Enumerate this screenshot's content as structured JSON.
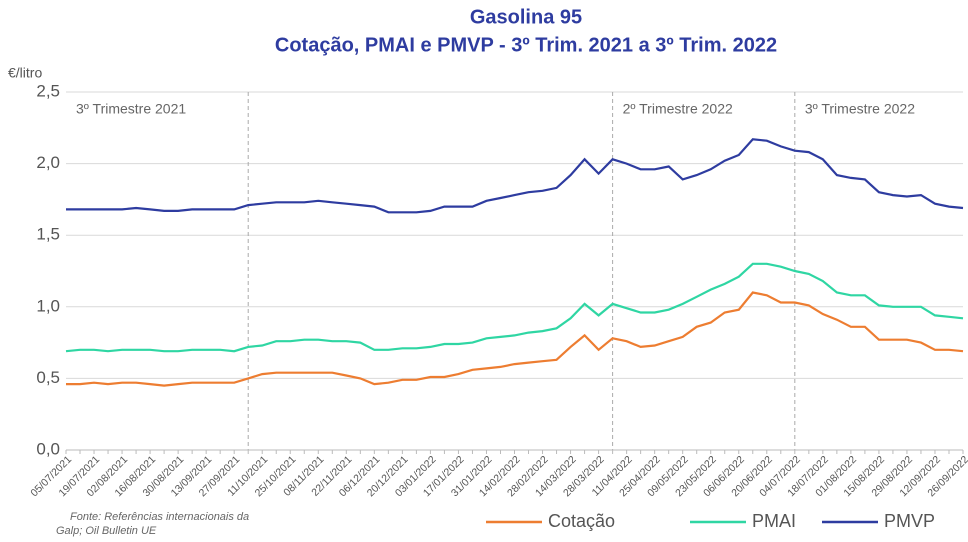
{
  "chart_data": {
    "type": "line",
    "title": "Gasolina 95",
    "subtitle": "Cotação, PMAI e PMVP - 3º Trim. 2021 a 3º Trim. 2022",
    "y_label": "€/litro",
    "source": [
      "Fonte: Referências internacionais da",
      "Galp; Oil Bulletin UE"
    ],
    "categories": [
      "05/07/2021",
      null,
      "19/07/2021",
      null,
      "02/08/2021",
      null,
      "16/08/2021",
      null,
      "30/08/2021",
      null,
      "13/09/2021",
      null,
      "27/09/2021",
      null,
      "11/10/2021",
      null,
      "25/10/2021",
      null,
      "08/11/2021",
      null,
      "22/11/2021",
      null,
      "06/12/2021",
      null,
      "20/12/2021",
      null,
      "03/01/2022",
      null,
      "17/01/2022",
      null,
      "31/01/2022",
      null,
      "14/02/2022",
      null,
      "28/02/2022",
      null,
      "14/03/2022",
      null,
      "28/03/2022",
      null,
      "11/04/2022",
      null,
      "25/04/2022",
      null,
      "09/05/2022",
      null,
      "23/05/2022",
      null,
      "06/06/2022",
      null,
      "20/06/2022",
      null,
      "04/07/2022",
      null,
      "18/07/2022",
      null,
      "01/08/2022",
      null,
      "15/08/2022",
      null,
      "29/08/2022",
      null,
      "12/09/2022",
      null,
      "26/09/2022"
    ],
    "series": [
      {
        "name": "Cotação",
        "color": "#ed7d31",
        "values": [
          0.46,
          0.46,
          0.47,
          0.46,
          0.47,
          0.47,
          0.46,
          0.45,
          0.46,
          0.47,
          0.47,
          0.47,
          0.47,
          0.5,
          0.53,
          0.54,
          0.54,
          0.54,
          0.54,
          0.54,
          0.52,
          0.5,
          0.46,
          0.47,
          0.49,
          0.49,
          0.51,
          0.51,
          0.53,
          0.56,
          0.57,
          0.58,
          0.6,
          0.61,
          0.62,
          0.63,
          0.72,
          0.8,
          0.7,
          0.78,
          0.76,
          0.72,
          0.73,
          0.76,
          0.79,
          0.86,
          0.89,
          0.96,
          0.98,
          1.1,
          1.08,
          1.03,
          1.03,
          1.01,
          0.95,
          0.91,
          0.86,
          0.86,
          0.77,
          0.77,
          0.77,
          0.75,
          0.7,
          0.7,
          0.69
        ]
      },
      {
        "name": "PMAI",
        "color": "#2fd6a3",
        "values": [
          0.69,
          0.7,
          0.7,
          0.69,
          0.7,
          0.7,
          0.7,
          0.69,
          0.69,
          0.7,
          0.7,
          0.7,
          0.69,
          0.72,
          0.73,
          0.76,
          0.76,
          0.77,
          0.77,
          0.76,
          0.76,
          0.75,
          0.7,
          0.7,
          0.71,
          0.71,
          0.72,
          0.74,
          0.74,
          0.75,
          0.78,
          0.79,
          0.8,
          0.82,
          0.83,
          0.85,
          0.92,
          1.02,
          0.94,
          1.02,
          0.99,
          0.96,
          0.96,
          0.98,
          1.02,
          1.07,
          1.12,
          1.16,
          1.21,
          1.3,
          1.3,
          1.28,
          1.25,
          1.23,
          1.18,
          1.1,
          1.08,
          1.08,
          1.01,
          1.0,
          1.0,
          1.0,
          0.94,
          0.93,
          0.92
        ]
      },
      {
        "name": "PMVP",
        "color": "#2e3ca0",
        "values": [
          1.68,
          1.68,
          1.68,
          1.68,
          1.68,
          1.69,
          1.68,
          1.67,
          1.67,
          1.68,
          1.68,
          1.68,
          1.68,
          1.71,
          1.72,
          1.73,
          1.73,
          1.73,
          1.74,
          1.73,
          1.72,
          1.71,
          1.7,
          1.66,
          1.66,
          1.66,
          1.67,
          1.7,
          1.7,
          1.7,
          1.74,
          1.76,
          1.78,
          1.8,
          1.81,
          1.83,
          1.92,
          2.03,
          1.93,
          2.03,
          2.0,
          1.96,
          1.96,
          1.98,
          1.89,
          1.92,
          1.96,
          2.02,
          2.06,
          2.17,
          2.16,
          2.12,
          2.09,
          2.08,
          2.03,
          1.92,
          1.9,
          1.89,
          1.8,
          1.78,
          1.77,
          1.78,
          1.72,
          1.7,
          1.69
        ]
      }
    ],
    "dividers": [
      13,
      39,
      52
    ],
    "annotations": [
      {
        "text": "3º Trimestre 2021",
        "x": 0
      },
      {
        "text": "2º Trimestre 2022",
        "x": 39
      },
      {
        "text": "3º Trimestre 2022",
        "x": 52
      }
    ],
    "ylim": [
      0,
      2.5
    ],
    "yticks": [
      {
        "value": 0,
        "label": "0,0"
      },
      {
        "value": 0.5,
        "label": "0,5"
      },
      {
        "value": 1,
        "label": "1,0"
      },
      {
        "value": 1.5,
        "label": "1,5"
      },
      {
        "value": 2,
        "label": "2,0"
      },
      {
        "value": 2.5,
        "label": "2,5"
      }
    ],
    "grid": true,
    "legend": "bottom-right"
  }
}
